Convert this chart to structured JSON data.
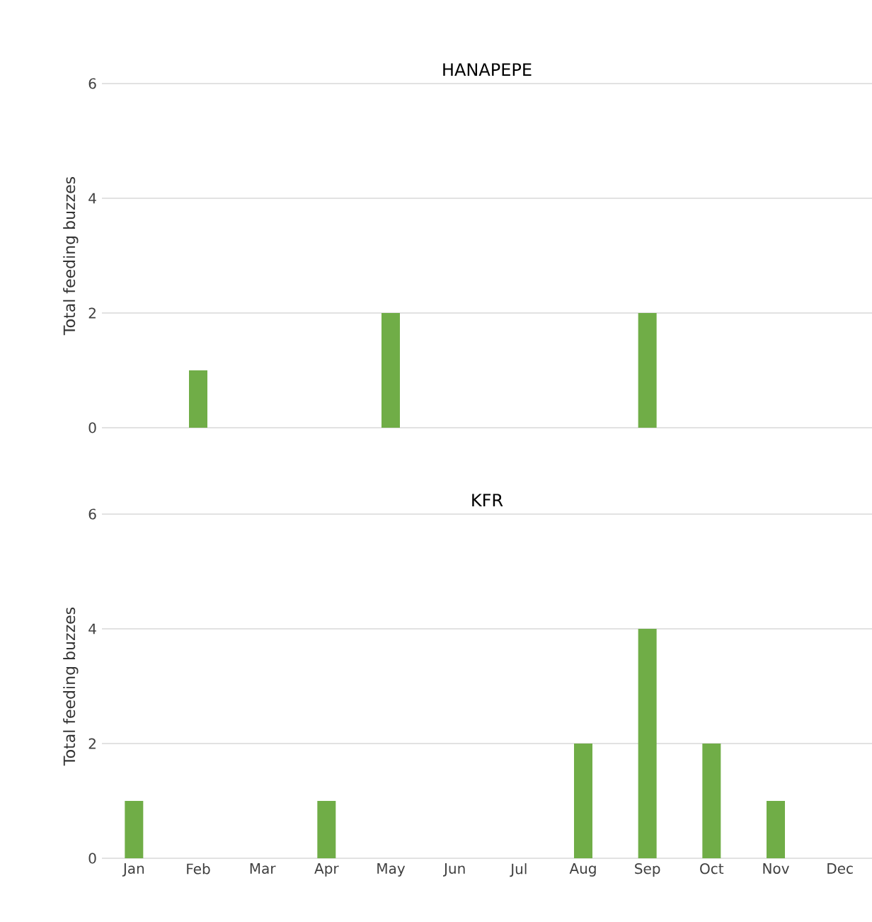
{
  "chart_data": [
    {
      "type": "bar",
      "title": "HANAPEPE",
      "ylabel": "Total feeding buzzes",
      "categories": [
        null,
        null,
        null,
        null,
        null,
        null,
        null,
        null,
        null,
        null,
        null,
        null
      ],
      "values": [
        0,
        1,
        0,
        0,
        2,
        0,
        0,
        0,
        2,
        0,
        0,
        0
      ],
      "color": "#70ad47",
      "ylim": [
        0,
        6
      ],
      "yticks": [
        0,
        2,
        4,
        6
      ],
      "grid": "y",
      "tick_labels": "y"
    },
    {
      "type": "bar",
      "title": "KFR",
      "ylabel": "Total feeding buzzes",
      "categories": [
        "Jan",
        "Feb",
        "Mar",
        "Apr",
        "May",
        "Jun",
        "Jul",
        "Aug",
        "Sep",
        "Oct",
        "Nov",
        "Dec"
      ],
      "values": [
        1,
        0,
        0,
        1,
        0,
        0,
        0,
        2,
        4,
        2,
        1,
        0
      ],
      "color": "#70ad47",
      "ylim": [
        0,
        6
      ],
      "yticks": [
        0,
        2,
        4,
        6
      ],
      "grid": "y"
    }
  ]
}
